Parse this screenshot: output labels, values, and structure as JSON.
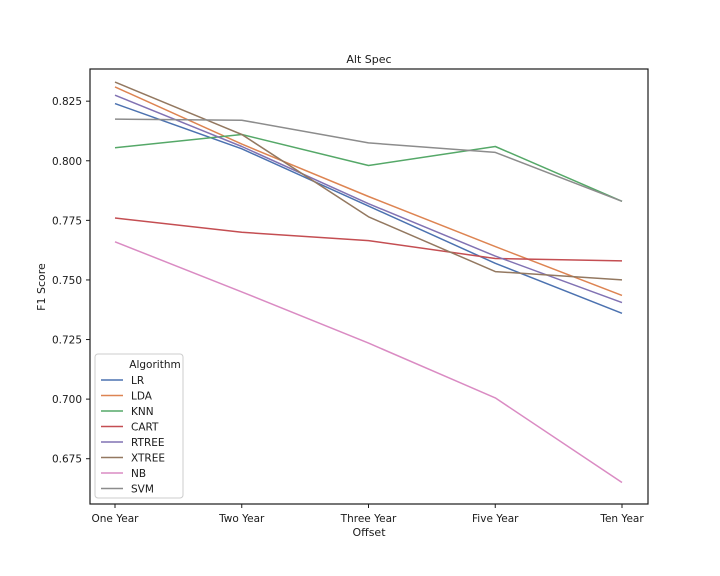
{
  "chart_data": {
    "type": "line",
    "title": "Alt Spec",
    "xlabel": "Offset",
    "ylabel": "F1 Score",
    "categories": [
      "One Year",
      "Two Year",
      "Three Year",
      "Five Year",
      "Ten Year"
    ],
    "ylim": [
      0.656,
      0.8385
    ],
    "yticks": [
      "0.675",
      "0.700",
      "0.725",
      "0.750",
      "0.775",
      "0.800",
      "0.825"
    ],
    "grid": false,
    "legend": {
      "title": "Algorithm",
      "placement": "lower-left"
    },
    "series": [
      {
        "name": "LR",
        "color": "#4c72b0",
        "values": [
          0.824,
          0.805,
          0.781,
          0.757,
          0.736
        ]
      },
      {
        "name": "LDA",
        "color": "#dd8452",
        "values": [
          0.831,
          0.807,
          0.785,
          0.764,
          0.7435
        ]
      },
      {
        "name": "KNN",
        "color": "#55a868",
        "values": [
          0.8055,
          0.811,
          0.798,
          0.806,
          0.783
        ]
      },
      {
        "name": "CART",
        "color": "#c44e52",
        "values": [
          0.776,
          0.77,
          0.7665,
          0.759,
          0.758
        ]
      },
      {
        "name": "RTREE",
        "color": "#8172b3",
        "values": [
          0.8275,
          0.806,
          0.782,
          0.76,
          0.7405
        ]
      },
      {
        "name": "XTREE",
        "color": "#937860",
        "values": [
          0.833,
          0.811,
          0.7765,
          0.7535,
          0.75
        ]
      },
      {
        "name": "NB",
        "color": "#da8bc3",
        "values": [
          0.766,
          0.745,
          0.7235,
          0.7005,
          0.665
        ]
      },
      {
        "name": "SVM",
        "color": "#8c8c8c",
        "values": [
          0.8175,
          0.817,
          0.8075,
          0.8035,
          0.783
        ]
      }
    ]
  }
}
